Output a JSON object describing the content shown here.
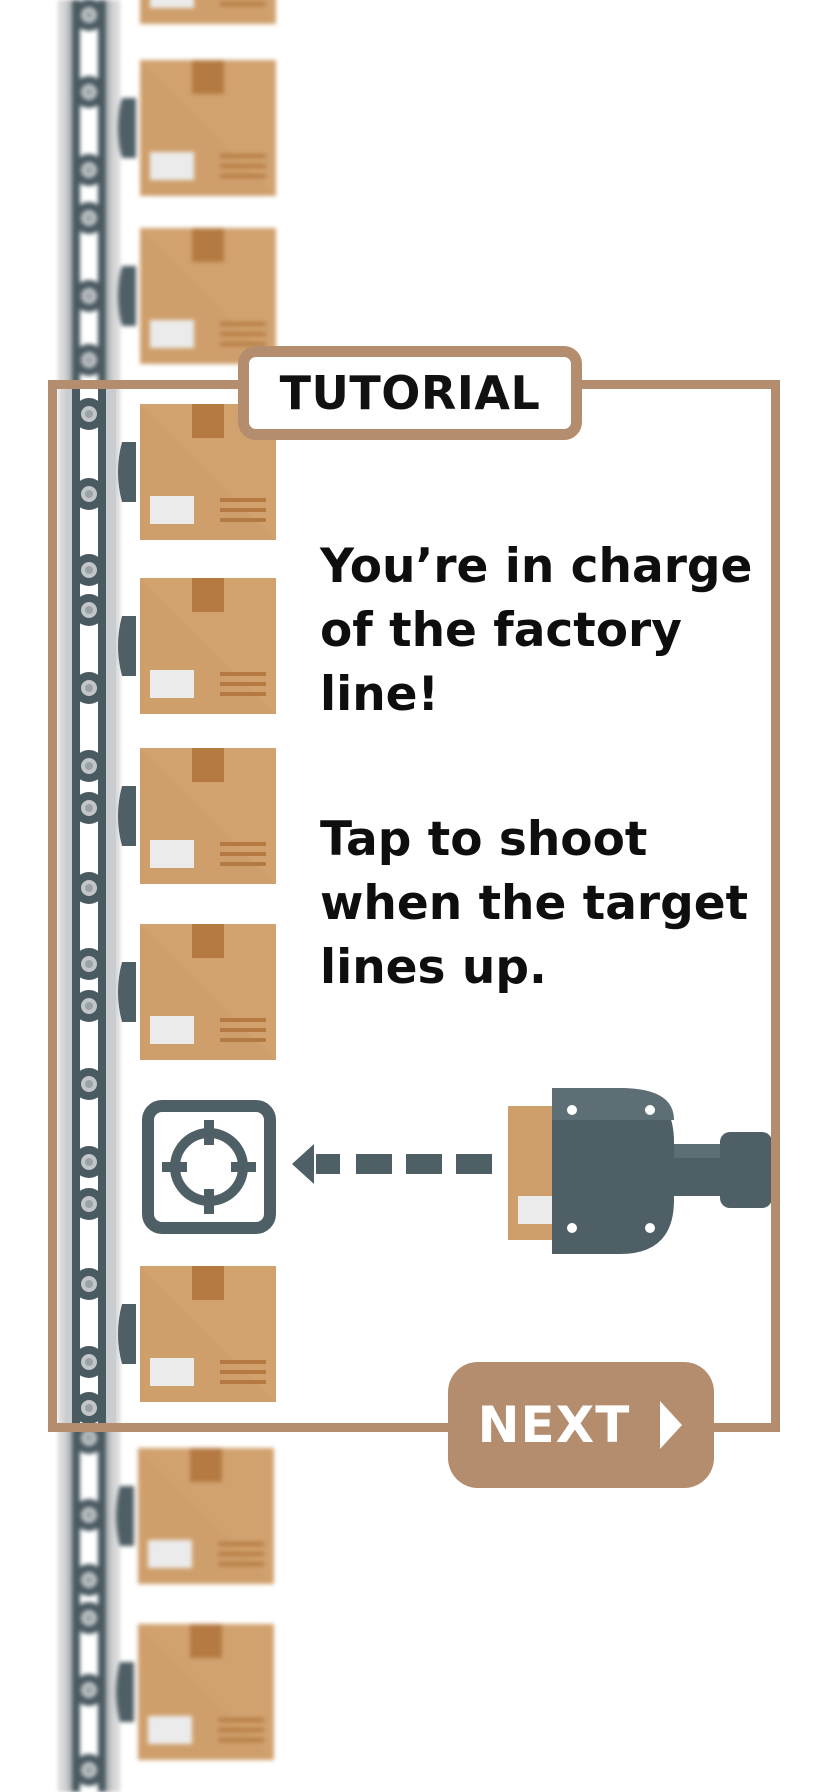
{
  "tutorial": {
    "title": "TUTORIAL",
    "message_1": "You’re in charge\nof the factory\nline!",
    "message_2": "Tap to shoot\nwhen the target\nlines up.",
    "next_label": "NEXT"
  },
  "icons": {
    "target": "crosshair-icon",
    "arrow": "dashed-arrow-left-icon",
    "shooter": "box-launcher-icon",
    "next": "chevron-right-icon"
  },
  "colors": {
    "accent": "#b48c6e",
    "box": "#cf9f6b",
    "box_tape": "#b57a42",
    "machine": "#4f5f66",
    "belt": "#3f4f57",
    "text": "#111111"
  }
}
